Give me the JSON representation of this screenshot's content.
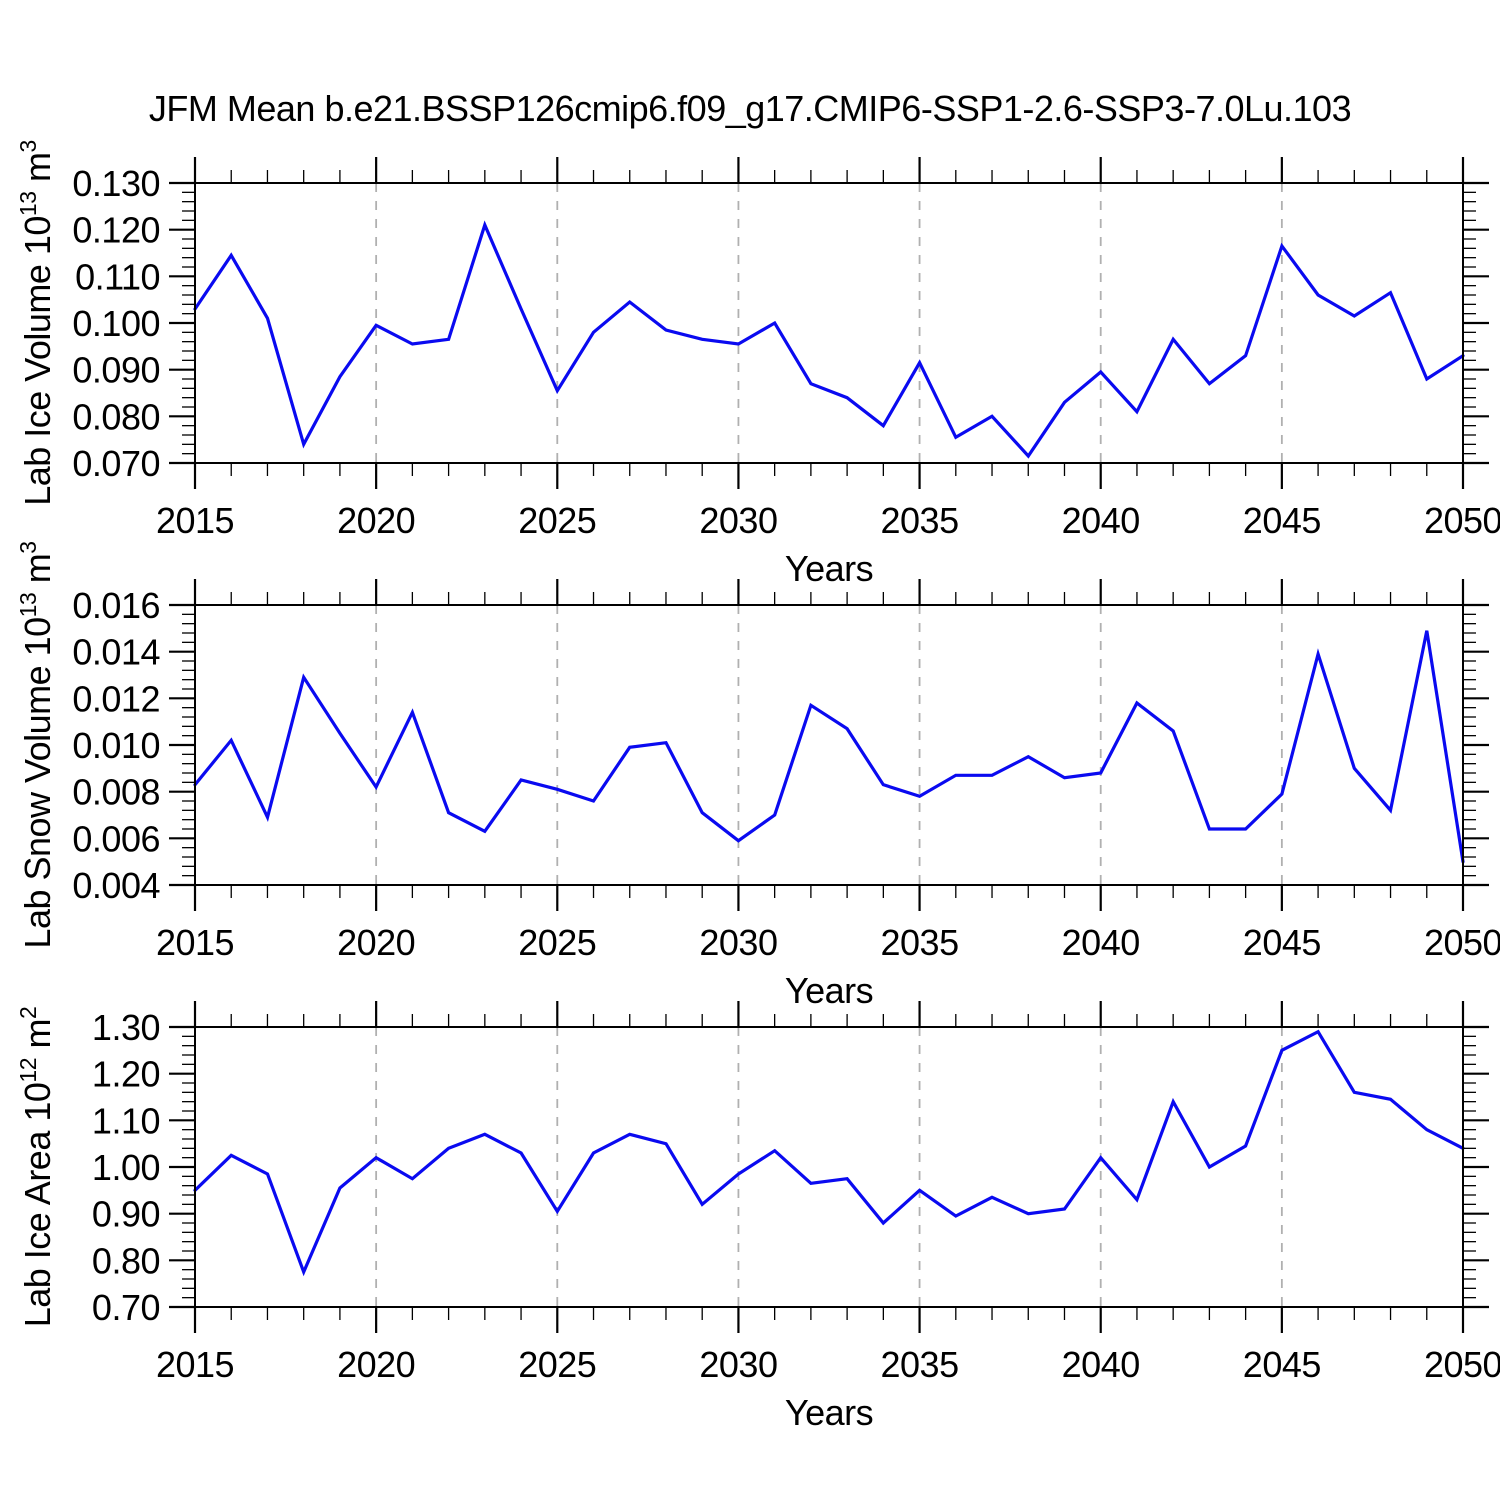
{
  "title": "JFM Mean b.e21.BSSP126cmip6.f09_g17.CMIP6-SSP1-2.6-SSP3-7.0Lu.103",
  "colors": {
    "line": "#0a0af0",
    "grid": "#b0b0b0",
    "axis": "#000000",
    "background": "#ffffff",
    "text": "#000000"
  },
  "x_axis": {
    "label": "Years",
    "min": 2015,
    "max": 2050,
    "major_step": 5,
    "minor_step": 1,
    "tick_labels": [
      "2015",
      "2020",
      "2025",
      "2030",
      "2035",
      "2040",
      "2045",
      "2050"
    ],
    "grid_years": [
      2020,
      2025,
      2030,
      2035,
      2040,
      2045
    ],
    "years": [
      2015,
      2016,
      2017,
      2018,
      2019,
      2020,
      2021,
      2022,
      2023,
      2024,
      2025,
      2026,
      2027,
      2028,
      2029,
      2030,
      2031,
      2032,
      2033,
      2034,
      2035,
      2036,
      2037,
      2038,
      2039,
      2040,
      2041,
      2042,
      2043,
      2044,
      2045,
      2046,
      2047,
      2048,
      2049,
      2050
    ]
  },
  "chart_data": [
    {
      "type": "line",
      "title": "",
      "xlabel": "Years",
      "ylabel": "Lab Ice Volume 10^{13} m^{3}",
      "ylim": [
        0.07,
        0.13
      ],
      "ymajor": 0.01,
      "yminor": 0.002,
      "grid": "vertical-dashed",
      "legend": "none",
      "ytick_labels": [
        "0.070",
        "0.080",
        "0.090",
        "0.100",
        "0.110",
        "0.120",
        "0.130"
      ],
      "x": [
        2015,
        2016,
        2017,
        2018,
        2019,
        2020,
        2021,
        2022,
        2023,
        2024,
        2025,
        2026,
        2027,
        2028,
        2029,
        2030,
        2031,
        2032,
        2033,
        2034,
        2035,
        2036,
        2037,
        2038,
        2039,
        2040,
        2041,
        2042,
        2043,
        2044,
        2045,
        2046,
        2047,
        2048,
        2049,
        2050
      ],
      "values": [
        0.103,
        0.1145,
        0.101,
        0.074,
        0.0885,
        0.0995,
        0.0955,
        0.0965,
        0.121,
        0.103,
        0.0855,
        0.098,
        0.1045,
        0.0985,
        0.0965,
        0.0955,
        0.1,
        0.087,
        0.084,
        0.078,
        0.0915,
        0.0755,
        0.08,
        0.0715,
        0.083,
        0.0895,
        0.081,
        0.0965,
        0.087,
        0.093,
        0.1165,
        0.106,
        0.1015,
        0.1065,
        0.088,
        0.093
      ]
    },
    {
      "type": "line",
      "title": "",
      "xlabel": "Years",
      "ylabel": "Lab Snow Volume 10^{13} m^{3}",
      "ylim": [
        0.004,
        0.016
      ],
      "ymajor": 0.002,
      "yminor": 0.0004,
      "grid": "vertical-dashed",
      "legend": "none",
      "ytick_labels": [
        "0.004",
        "0.006",
        "0.008",
        "0.010",
        "0.012",
        "0.014",
        "0.016"
      ],
      "x": [
        2015,
        2016,
        2017,
        2018,
        2019,
        2020,
        2021,
        2022,
        2023,
        2024,
        2025,
        2026,
        2027,
        2028,
        2029,
        2030,
        2031,
        2032,
        2033,
        2034,
        2035,
        2036,
        2037,
        2038,
        2039,
        2040,
        2041,
        2042,
        2043,
        2044,
        2045,
        2046,
        2047,
        2048,
        2049,
        2050
      ],
      "values": [
        0.0083,
        0.0102,
        0.0069,
        0.0129,
        0.0105,
        0.0082,
        0.0114,
        0.0071,
        0.0063,
        0.0085,
        0.0081,
        0.0076,
        0.0099,
        0.0101,
        0.0071,
        0.0059,
        0.007,
        0.0117,
        0.0107,
        0.0083,
        0.0078,
        0.0087,
        0.0087,
        0.0095,
        0.0086,
        0.0088,
        0.0118,
        0.0106,
        0.0064,
        0.0064,
        0.0079,
        0.0139,
        0.009,
        0.0072,
        0.0149,
        0.005
      ]
    },
    {
      "type": "line",
      "title": "",
      "xlabel": "Years",
      "ylabel": "Lab Ice Area 10^{12} m^{2}",
      "ylim": [
        0.7,
        1.3
      ],
      "ymajor": 0.1,
      "yminor": 0.02,
      "grid": "vertical-dashed",
      "legend": "none",
      "ytick_labels": [
        "0.70",
        "0.80",
        "0.90",
        "1.00",
        "1.10",
        "1.20",
        "1.30"
      ],
      "x": [
        2015,
        2016,
        2017,
        2018,
        2019,
        2020,
        2021,
        2022,
        2023,
        2024,
        2025,
        2026,
        2027,
        2028,
        2029,
        2030,
        2031,
        2032,
        2033,
        2034,
        2035,
        2036,
        2037,
        2038,
        2039,
        2040,
        2041,
        2042,
        2043,
        2044,
        2045,
        2046,
        2047,
        2048,
        2049,
        2050
      ],
      "values": [
        0.95,
        1.025,
        0.985,
        0.775,
        0.955,
        1.02,
        0.975,
        1.04,
        1.07,
        1.03,
        0.905,
        1.03,
        1.07,
        1.05,
        0.92,
        0.985,
        1.035,
        0.965,
        0.975,
        0.88,
        0.95,
        0.895,
        0.935,
        0.9,
        0.91,
        1.02,
        0.93,
        1.14,
        1.0,
        1.045,
        1.25,
        1.29,
        1.16,
        1.145,
        1.08,
        1.04
      ]
    }
  ]
}
